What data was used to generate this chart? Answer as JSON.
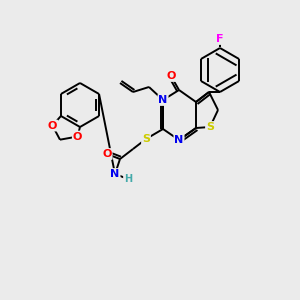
{
  "bg_color": "#ebebeb",
  "atom_colors": {
    "N": "#0000ee",
    "O": "#ff0000",
    "S": "#cccc00",
    "F": "#ff00ff",
    "H": "#44aaaa",
    "C": "#000000"
  },
  "bond_color": "#000000",
  "bond_lw": 1.4,
  "figsize": [
    3.0,
    3.0
  ],
  "dpi": 100
}
